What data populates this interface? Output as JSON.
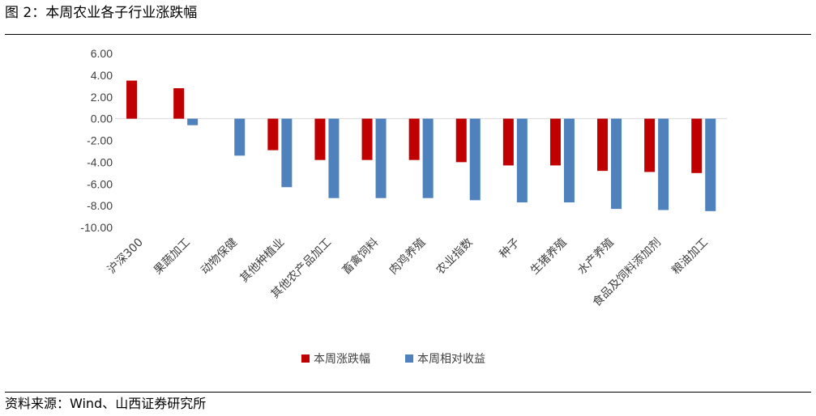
{
  "figure_title": "图 2：本周农业各子行业涨跌幅",
  "source": "资料来源：Wind、山西证券研究所",
  "colors": {
    "series1": "#C00000",
    "series2": "#4F81BD",
    "axis": "#D9D9D9",
    "text": "#404040"
  },
  "chart_data": {
    "type": "bar",
    "title": "",
    "xlabel": "",
    "ylabel": "",
    "ylim": [
      -10,
      6
    ],
    "yticks": [
      "6.00",
      "4.00",
      "2.00",
      "0.00",
      "-2.00",
      "-4.00",
      "-6.00",
      "-8.00",
      "-10.00"
    ],
    "grid": false,
    "legend_position": "bottom",
    "categories": [
      "沪深300",
      "果蔬加工",
      "动物保健",
      "其他种植业",
      "其他农产品加工",
      "畜禽饲料",
      "肉鸡养殖",
      "农业指数",
      "种子",
      "生猪养殖",
      "水产养殖",
      "食品及饲料添加剂",
      "粮油加工"
    ],
    "series": [
      {
        "name": "本周涨跌幅",
        "values": [
          3.5,
          2.8,
          0,
          -2.9,
          -3.8,
          -3.8,
          -3.8,
          -4.0,
          -4.3,
          -4.3,
          -4.8,
          -4.9,
          -5.0
        ]
      },
      {
        "name": "本周相对收益",
        "values": [
          0,
          -0.6,
          -3.4,
          -6.3,
          -7.3,
          -7.3,
          -7.3,
          -7.5,
          -7.7,
          -7.7,
          -8.3,
          -8.4,
          -8.5
        ]
      }
    ]
  }
}
